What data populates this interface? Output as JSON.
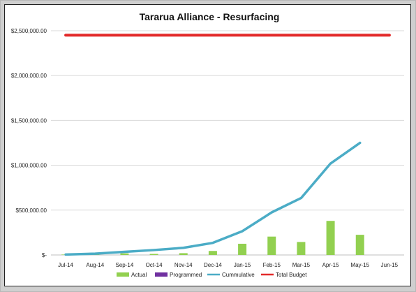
{
  "chart_data": {
    "type": "bar",
    "title": "Tararua  Alliance - Resurfacing",
    "categories": [
      "Jul-14",
      "Aug-14",
      "Sep-14",
      "Oct-14",
      "Nov-14",
      "Dec-14",
      "Jan-15",
      "Feb-15",
      "Mar-15",
      "Apr-15",
      "May-15",
      "Jun-15"
    ],
    "ylim": [
      0,
      2500000
    ],
    "y_ticks": [
      0,
      500000,
      1000000,
      1500000,
      2000000,
      2500000
    ],
    "y_tick_labels": [
      "$-",
      "$500,000.00",
      "$1,000,000.00",
      "$1,500,000.00",
      "$2,000,000.00",
      "$2,500,000.00"
    ],
    "grid": true,
    "legend_position": "bottom",
    "series": [
      {
        "name": "Actual",
        "kind": "bar",
        "color": "#92d050",
        "values": [
          5000,
          10000,
          18000,
          12000,
          20000,
          45000,
          125000,
          205000,
          145000,
          380000,
          225000,
          null
        ]
      },
      {
        "name": "Programmed",
        "kind": "bar",
        "color": "#7030a0",
        "values": [
          null,
          null,
          null,
          null,
          null,
          null,
          null,
          null,
          null,
          null,
          null,
          null
        ]
      },
      {
        "name": "Cummulative",
        "kind": "line",
        "color": "#4bacc6",
        "values": [
          5000,
          15000,
          35000,
          55000,
          80000,
          135000,
          265000,
          475000,
          635000,
          1020000,
          1250000,
          null
        ]
      },
      {
        "name": "Total Budget",
        "kind": "line",
        "color": "#e32b2b",
        "values": [
          2450000,
          2450000,
          2450000,
          2450000,
          2450000,
          2450000,
          2450000,
          2450000,
          2450000,
          2450000,
          2450000,
          2450000
        ]
      }
    ]
  }
}
